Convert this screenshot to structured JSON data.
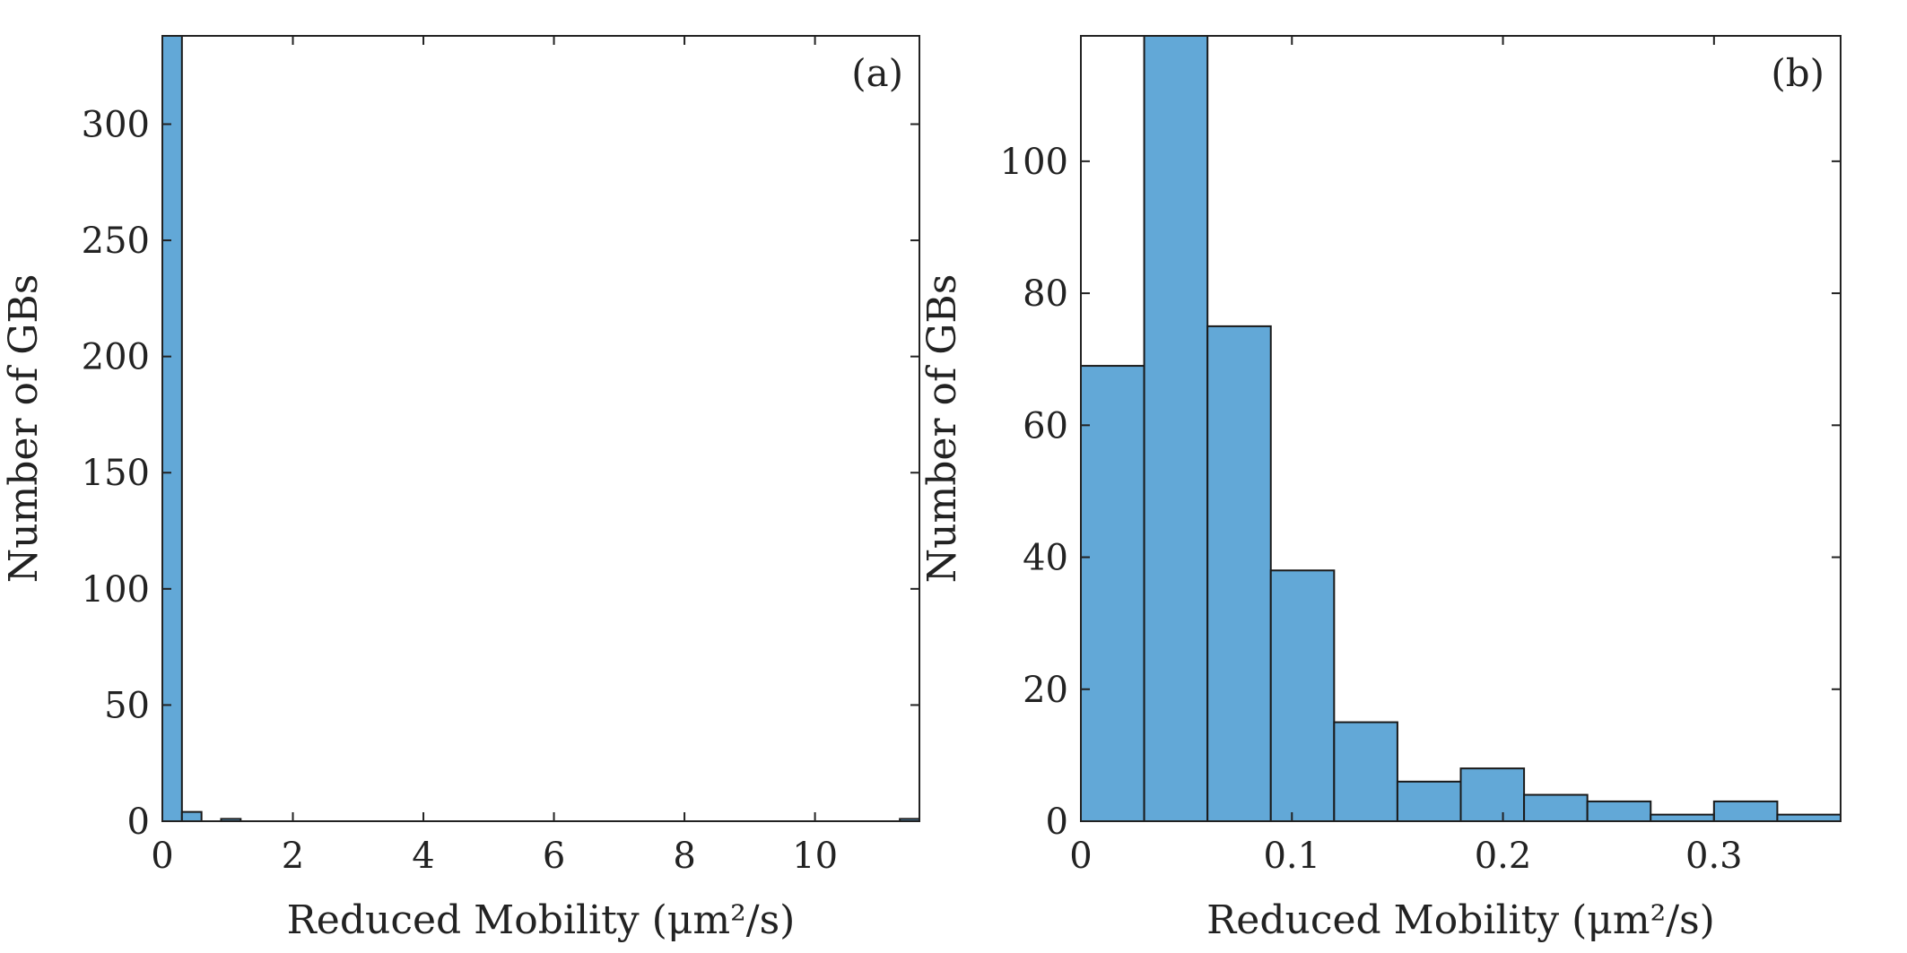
{
  "chart_data": [
    {
      "type": "bar",
      "panel": "(a)",
      "xlabel": "Reduced Mobility (μm²/s)",
      "ylabel": "Number of GBs",
      "xlim": [
        0,
        11.6
      ],
      "ylim": [
        0,
        338
      ],
      "x_ticks": [
        "0",
        "2",
        "4",
        "6",
        "8",
        "10"
      ],
      "x_tick_values": [
        0,
        2,
        4,
        6,
        8,
        10
      ],
      "y_ticks": [
        "0",
        "50",
        "100",
        "150",
        "200",
        "250",
        "300"
      ],
      "y_tick_values": [
        0,
        50,
        100,
        150,
        200,
        250,
        300
      ],
      "bins": [
        {
          "x0": 0.0,
          "x1": 0.3,
          "count": 338
        },
        {
          "x0": 0.3,
          "x1": 0.6,
          "count": 4
        },
        {
          "x0": 0.9,
          "x1": 1.2,
          "count": 1
        },
        {
          "x0": 11.3,
          "x1": 11.6,
          "count": 1
        }
      ]
    },
    {
      "type": "bar",
      "panel": "(b)",
      "xlabel": "Reduced Mobility (μm²/s)",
      "ylabel": "Number of GBs",
      "xlim": [
        0,
        0.36
      ],
      "ylim": [
        0,
        119
      ],
      "x_ticks": [
        "0",
        "0.1",
        "0.2",
        "0.3"
      ],
      "x_tick_values": [
        0,
        0.1,
        0.2,
        0.3
      ],
      "y_ticks": [
        "0",
        "20",
        "40",
        "60",
        "80",
        "100"
      ],
      "y_tick_values": [
        0,
        20,
        40,
        60,
        80,
        100
      ],
      "bins": [
        {
          "x0": 0.0,
          "x1": 0.03,
          "count": 69
        },
        {
          "x0": 0.03,
          "x1": 0.06,
          "count": 119
        },
        {
          "x0": 0.06,
          "x1": 0.09,
          "count": 75
        },
        {
          "x0": 0.09,
          "x1": 0.12,
          "count": 38
        },
        {
          "x0": 0.12,
          "x1": 0.15,
          "count": 15
        },
        {
          "x0": 0.15,
          "x1": 0.18,
          "count": 6
        },
        {
          "x0": 0.18,
          "x1": 0.21,
          "count": 8
        },
        {
          "x0": 0.21,
          "x1": 0.24,
          "count": 4
        },
        {
          "x0": 0.24,
          "x1": 0.27,
          "count": 3
        },
        {
          "x0": 0.27,
          "x1": 0.3,
          "count": 1
        },
        {
          "x0": 0.3,
          "x1": 0.33,
          "count": 3
        },
        {
          "x0": 0.33,
          "x1": 0.36,
          "count": 1
        }
      ]
    }
  ],
  "colors": {
    "bar_fill": "#62a8d7",
    "bar_edge": "#1a1a1a",
    "axis": "#222222"
  }
}
